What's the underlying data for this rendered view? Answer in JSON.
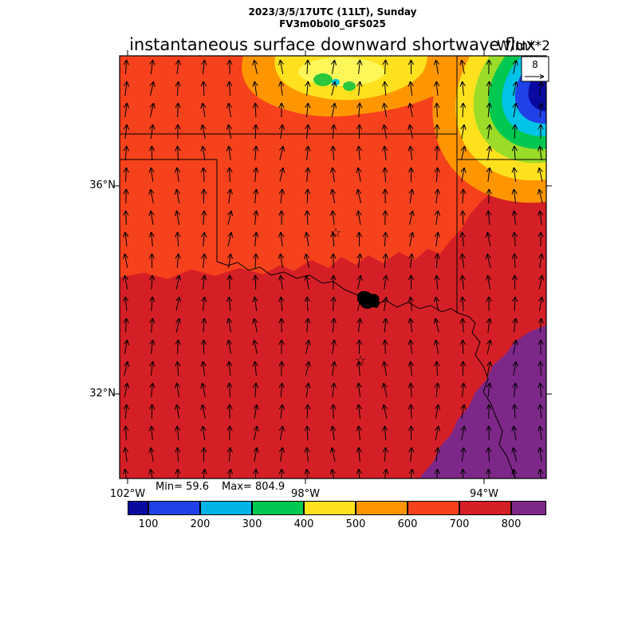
{
  "header": {
    "line1": "2023/3/5/17UTC (11LT), Sunday",
    "line2": "FV3m0b0l0_GFS025"
  },
  "title": "instantaneous surface downward shortwave flux",
  "units": "W/m**2",
  "stats": {
    "min": "Min= 59.6",
    "max": "Max= 804.9"
  },
  "axes": {
    "lat": [
      "36°N",
      "32°N"
    ],
    "lon": [
      "102°W",
      "98°W",
      "94°W"
    ]
  },
  "ref_vector": {
    "label": "8"
  },
  "markers": {
    "star": "☆"
  },
  "colorbar": {
    "tick_labels": [
      "100",
      "200",
      "300",
      "400",
      "500",
      "600",
      "700",
      "800"
    ],
    "colors": [
      "#0a0aa0",
      "#2041e8",
      "#00b4e6",
      "#00c850",
      "#ffe11e",
      "#ff9600",
      "#f5411c",
      "#d51f26",
      "#7d2888"
    ]
  },
  "chart_data": {
    "type": "heatmap",
    "title": "instantaneous surface downward shortwave flux",
    "units": "W/m**2",
    "valid_time": "2023/3/5/17UTC (11LT), Sunday",
    "model_run": "FV3m0b0l0_GFS025",
    "min": 59.6,
    "max": 804.9,
    "colorbar_levels": [
      100,
      200,
      300,
      400,
      500,
      600,
      700,
      800
    ],
    "colorbar_colors": [
      "#0a0aa0",
      "#2041e8",
      "#00b4e6",
      "#00c850",
      "#ffe11e",
      "#ff9600",
      "#f5411c",
      "#d51f26",
      "#7d2888"
    ],
    "lat_ticks": [
      "36°N",
      "32°N"
    ],
    "lon_ticks": [
      "102°W",
      "98°W",
      "94°W"
    ],
    "wind_reference": 8,
    "overlay": "wind vector arrows pointing roughly northward over the whole domain",
    "field_summary": [
      {
        "region": "Oklahoma / northern half of map",
        "value_range": "600-700"
      },
      {
        "region": "north Texas / southern half of map",
        "value_range": "700-800"
      },
      {
        "region": "southeast corner",
        "value_range": ">800 (purple)"
      },
      {
        "region": "cloud patch north-center",
        "value_range": "300-500 (yellow/green)"
      },
      {
        "region": "cloud band northeast corner",
        "value_range": "60-300 (navy/blue/cyan/green)"
      }
    ]
  }
}
